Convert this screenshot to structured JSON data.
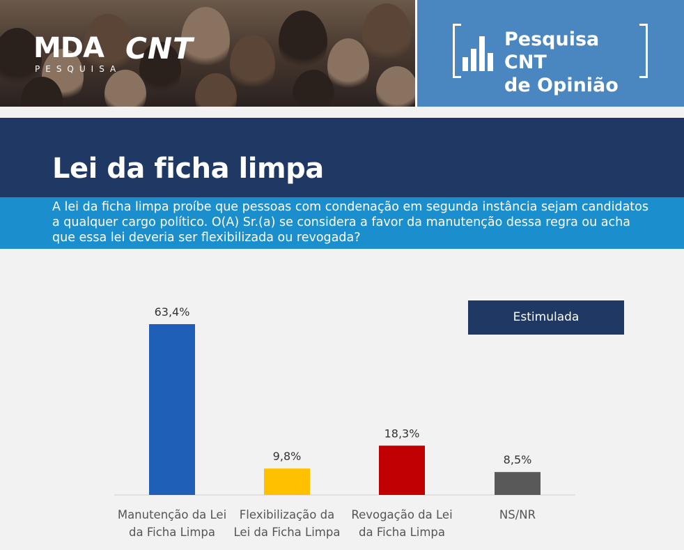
{
  "header": {
    "logo_mda": "MDA",
    "logo_pesquisa": "PESQUISA",
    "logo_cnt": "CNT",
    "brand_line1": "Pesquisa CNT",
    "brand_line2": "de Opinião"
  },
  "title": "Lei da ficha limpa",
  "question": "A lei da ficha limpa proíbe que pessoas com condenação em segunda instância sejam candidatos a qualquer cargo político. O(A) Sr.(a) se considera a favor da manutenção dessa regra ou acha que essa lei deveria ser flexibilizada ou revogada?",
  "badge": "Estimulada",
  "colors": {
    "navy": "#1f3864",
    "cyan": "#1b8fce",
    "brand_blue": "#4a86c0"
  },
  "chart_data": {
    "type": "bar",
    "categories": [
      [
        "Manutenção da Lei",
        "da Ficha Limpa"
      ],
      [
        "Flexibilização da",
        "Lei da Ficha Limpa"
      ],
      [
        "Revogação da Lei",
        "da Ficha Limpa"
      ],
      [
        "NS/NR"
      ]
    ],
    "values": [
      63.4,
      9.8,
      18.3,
      8.5
    ],
    "value_labels": [
      "63,4%",
      "9,8%",
      "18,3%",
      "8,5%"
    ],
    "bar_colors": [
      "#1f5fb8",
      "#ffc000",
      "#c00000",
      "#595959"
    ],
    "ylim": [
      0,
      63.4
    ],
    "grid": false,
    "legend": "none"
  }
}
